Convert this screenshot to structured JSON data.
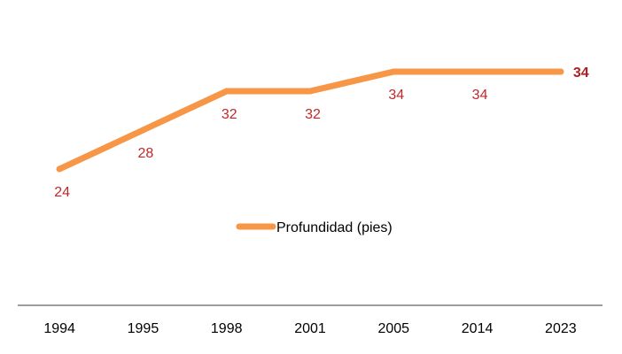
{
  "chart_data": {
    "type": "line",
    "categories": [
      "1994",
      "1995",
      "1998",
      "2001",
      "2005",
      "2014",
      "2023"
    ],
    "series": [
      {
        "name": "Profundidad (pies)",
        "values": [
          24,
          28,
          32,
          32,
          34,
          34,
          34
        ],
        "color": "#f79646"
      }
    ],
    "data_labels": [
      "24",
      "28",
      "32",
      "32",
      "34",
      "34",
      "34"
    ],
    "label_color": "#c0282a",
    "last_label_bold": true,
    "ylim": [
      10,
      36
    ],
    "grid": false,
    "legend_position": "center",
    "title": "",
    "xlabel": "",
    "ylabel": ""
  }
}
